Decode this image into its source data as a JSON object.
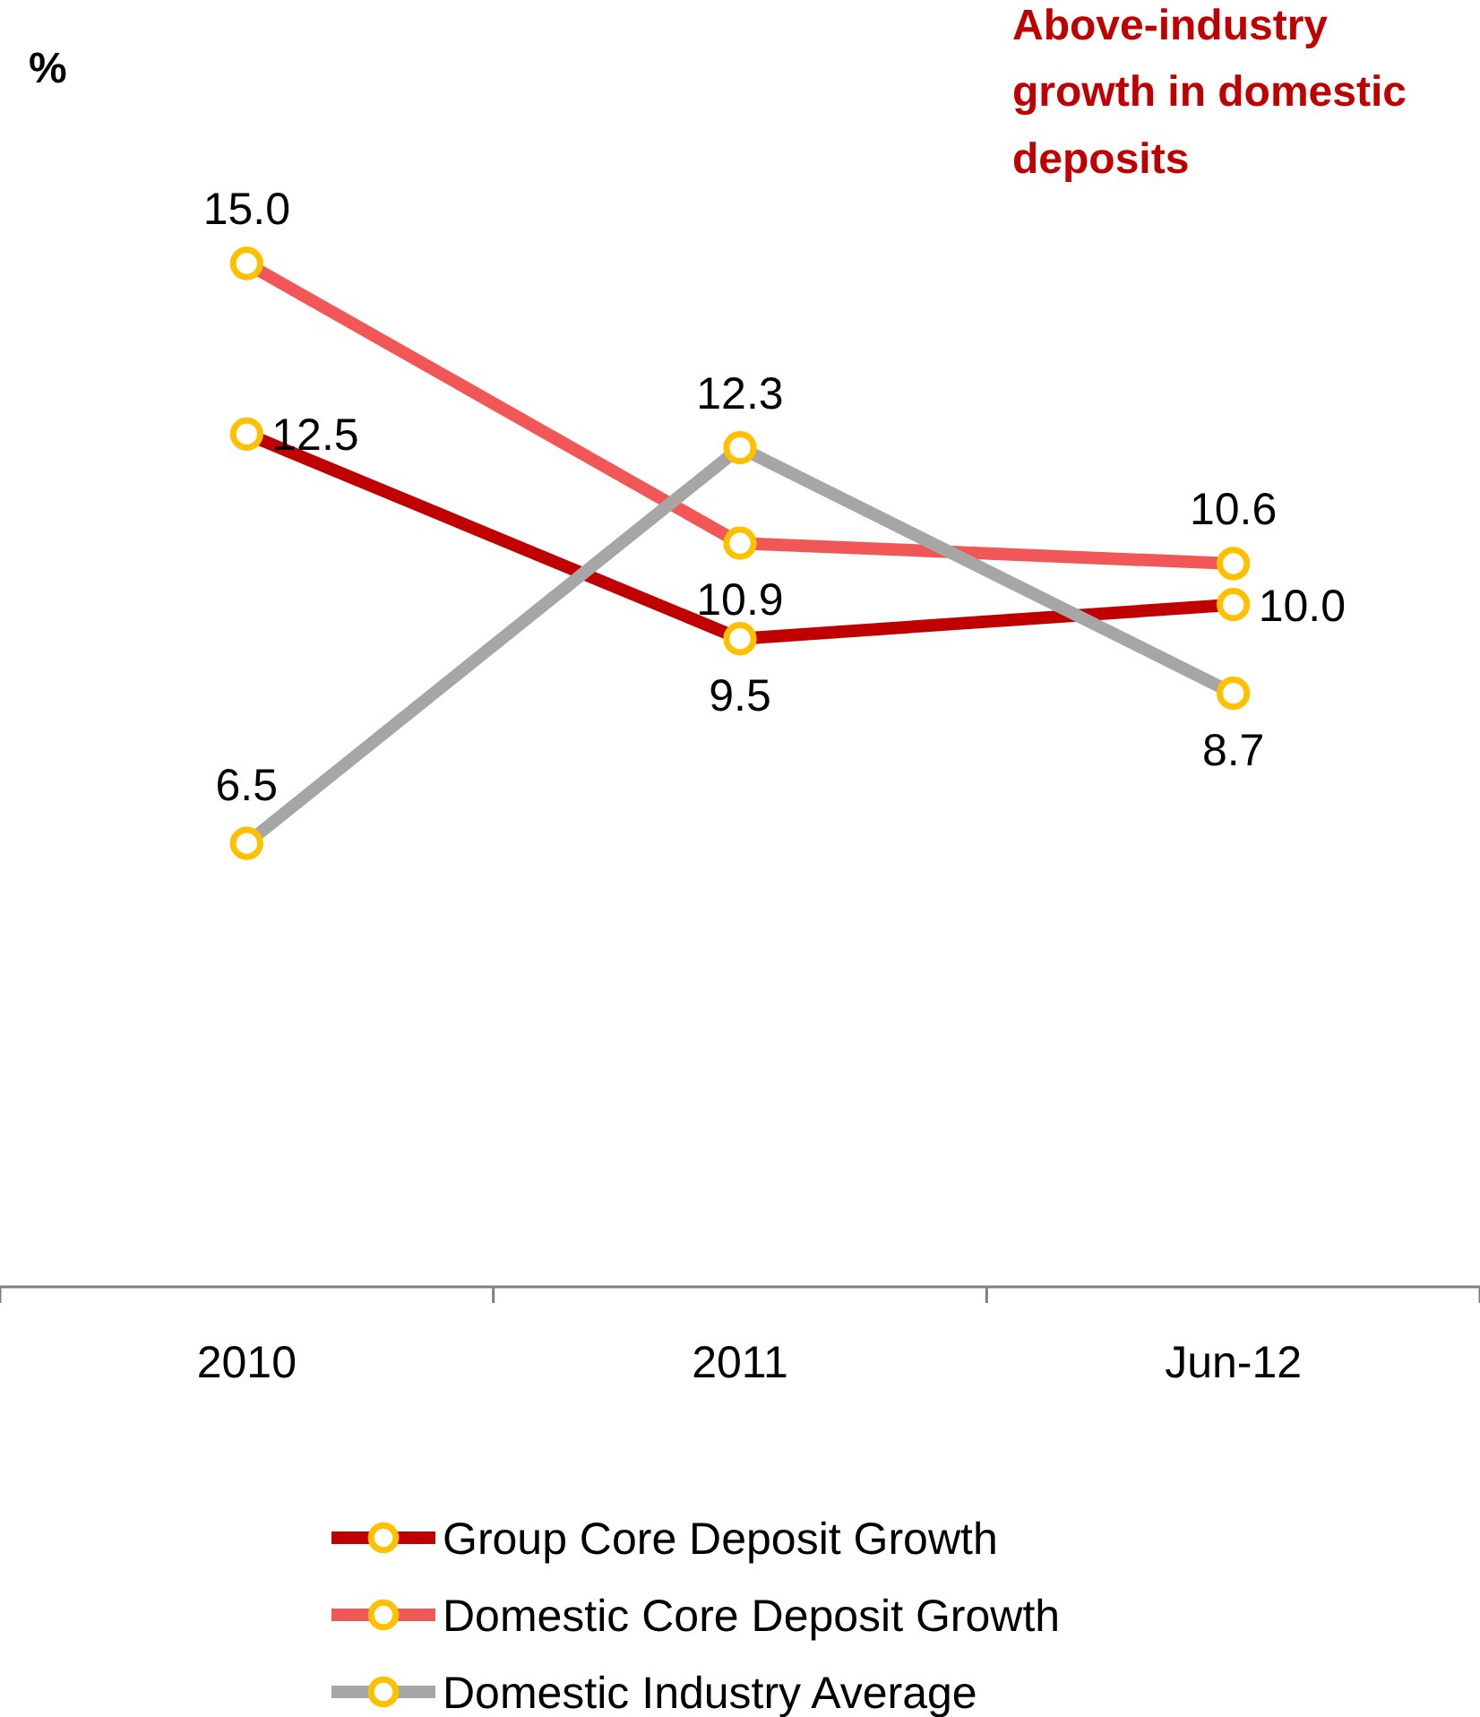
{
  "chart_data": {
    "type": "line",
    "title": "Above-industry growth in domestic deposits",
    "ylabel": "%",
    "categories": [
      "2010",
      "2011",
      "Jun-12"
    ],
    "series": [
      {
        "name": "Group Core Deposit Growth",
        "color": "#c00000",
        "values": [
          12.5,
          9.5,
          10.0
        ],
        "value_labels": [
          "12.5",
          "9.5",
          "10.0"
        ]
      },
      {
        "name": "Domestic Core Deposit Growth",
        "color": "#f25757",
        "values": [
          15.0,
          10.9,
          10.6
        ],
        "value_labels": [
          "15.0",
          "10.9",
          "10.6"
        ]
      },
      {
        "name": "Domestic Industry Average",
        "color": "#a6a6a6",
        "values": [
          6.5,
          12.3,
          8.7
        ],
        "value_labels": [
          "6.5",
          "12.3",
          "8.7"
        ]
      }
    ],
    "marker": "circle",
    "legend": "bottom",
    "tick_labels": "x"
  }
}
